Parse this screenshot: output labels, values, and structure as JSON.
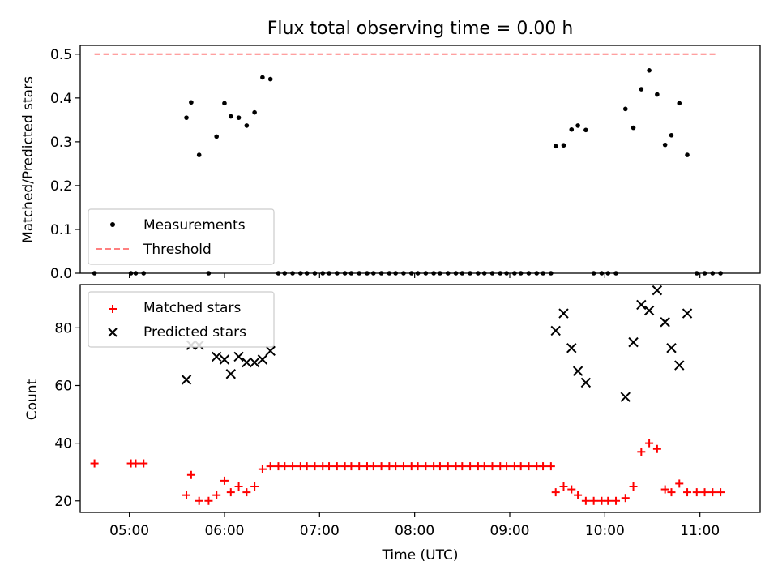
{
  "chart_data": [
    {
      "type": "scatter",
      "title": "Flux total observing time = 0.00 h",
      "xlabel": "",
      "ylabel": "Matched/Predicted stars",
      "ylim": [
        0,
        0.52
      ],
      "xlim": [
        "04:29",
        "11:38"
      ],
      "yticks": [
        "0.0",
        "0.1",
        "0.2",
        "0.3",
        "0.4",
        "0.5"
      ],
      "legend": {
        "position": "lower-left",
        "entries": [
          "Measurements",
          "Threshold"
        ]
      },
      "colors": {
        "measurements": "#000000",
        "threshold": "#ff8080"
      },
      "threshold": {
        "name": "Threshold",
        "value": 0.5,
        "x_range": [
          "04:38",
          "11:10"
        ]
      },
      "series": [
        {
          "name": "Measurements",
          "points": [
            [
              "04:38",
              0.0
            ],
            [
              "05:01",
              0.0
            ],
            [
              "05:04",
              0.0
            ],
            [
              "05:09",
              0.0
            ],
            [
              "05:36",
              0.355
            ],
            [
              "05:39",
              0.39
            ],
            [
              "05:44",
              0.27
            ],
            [
              "05:50",
              0.0
            ],
            [
              "05:55",
              0.312
            ],
            [
              "06:00",
              0.388
            ],
            [
              "06:04",
              0.358
            ],
            [
              "06:09",
              0.355
            ],
            [
              "06:14",
              0.337
            ],
            [
              "06:19",
              0.367
            ],
            [
              "06:24",
              0.447
            ],
            [
              "06:29",
              0.443
            ],
            [
              "06:34",
              0.0
            ],
            [
              "06:38",
              0.0
            ],
            [
              "06:43",
              0.0
            ],
            [
              "06:48",
              0.0
            ],
            [
              "06:52",
              0.0
            ],
            [
              "06:57",
              0.0
            ],
            [
              "07:02",
              0.0
            ],
            [
              "07:06",
              0.0
            ],
            [
              "07:11",
              0.0
            ],
            [
              "07:16",
              0.0
            ],
            [
              "07:20",
              0.0
            ],
            [
              "07:25",
              0.0
            ],
            [
              "07:30",
              0.0
            ],
            [
              "07:34",
              0.0
            ],
            [
              "07:39",
              0.0
            ],
            [
              "07:44",
              0.0
            ],
            [
              "07:48",
              0.0
            ],
            [
              "07:53",
              0.0
            ],
            [
              "07:58",
              0.0
            ],
            [
              "08:02",
              0.0
            ],
            [
              "08:07",
              0.0
            ],
            [
              "08:12",
              0.0
            ],
            [
              "08:16",
              0.0
            ],
            [
              "08:21",
              0.0
            ],
            [
              "08:26",
              0.0
            ],
            [
              "08:30",
              0.0
            ],
            [
              "08:35",
              0.0
            ],
            [
              "08:40",
              0.0
            ],
            [
              "08:44",
              0.0
            ],
            [
              "08:49",
              0.0
            ],
            [
              "08:54",
              0.0
            ],
            [
              "08:58",
              0.0
            ],
            [
              "09:03",
              0.0
            ],
            [
              "09:07",
              0.0
            ],
            [
              "09:12",
              0.0
            ],
            [
              "09:17",
              0.0
            ],
            [
              "09:21",
              0.0
            ],
            [
              "09:26",
              0.0
            ],
            [
              "09:29",
              0.29
            ],
            [
              "09:34",
              0.292
            ],
            [
              "09:39",
              0.328
            ],
            [
              "09:43",
              0.337
            ],
            [
              "09:48",
              0.327
            ],
            [
              "09:53",
              0.0
            ],
            [
              "09:58",
              0.0
            ],
            [
              "10:02",
              0.0
            ],
            [
              "10:07",
              0.0
            ],
            [
              "10:13",
              0.375
            ],
            [
              "10:18",
              0.332
            ],
            [
              "10:23",
              0.42
            ],
            [
              "10:28",
              0.463
            ],
            [
              "10:33",
              0.408
            ],
            [
              "10:38",
              0.293
            ],
            [
              "10:42",
              0.315
            ],
            [
              "10:47",
              0.388
            ],
            [
              "10:52",
              0.27
            ],
            [
              "10:58",
              0.0
            ],
            [
              "11:03",
              0.0
            ],
            [
              "11:08",
              0.0
            ],
            [
              "11:13",
              0.0
            ]
          ]
        }
      ]
    },
    {
      "type": "scatter",
      "title": "",
      "xlabel": "Time (UTC)",
      "ylabel": "Count",
      "ylim": [
        16,
        95
      ],
      "xlim": [
        "04:29",
        "11:38"
      ],
      "yticks": [
        "20",
        "40",
        "60",
        "80"
      ],
      "xticks": [
        "05:00",
        "06:00",
        "07:00",
        "08:00",
        "09:00",
        "10:00",
        "11:00"
      ],
      "legend": {
        "position": "top-left",
        "entries": [
          "Matched stars",
          "Predicted stars"
        ]
      },
      "colors": {
        "matched": "#ff0000",
        "predicted": "#000000"
      },
      "series": [
        {
          "name": "Matched stars",
          "points": [
            [
              "04:38",
              33
            ],
            [
              "05:01",
              33
            ],
            [
              "05:04",
              33
            ],
            [
              "05:09",
              33
            ],
            [
              "05:36",
              22
            ],
            [
              "05:39",
              29
            ],
            [
              "05:44",
              20
            ],
            [
              "05:50",
              20
            ],
            [
              "05:55",
              22
            ],
            [
              "06:00",
              27
            ],
            [
              "06:04",
              23
            ],
            [
              "06:09",
              25
            ],
            [
              "06:14",
              23
            ],
            [
              "06:19",
              25
            ],
            [
              "06:24",
              31
            ],
            [
              "06:29",
              32
            ],
            [
              "06:34",
              32
            ],
            [
              "06:38",
              32
            ],
            [
              "06:43",
              32
            ],
            [
              "06:48",
              32
            ],
            [
              "06:52",
              32
            ],
            [
              "06:57",
              32
            ],
            [
              "07:02",
              32
            ],
            [
              "07:06",
              32
            ],
            [
              "07:11",
              32
            ],
            [
              "07:16",
              32
            ],
            [
              "07:20",
              32
            ],
            [
              "07:25",
              32
            ],
            [
              "07:30",
              32
            ],
            [
              "07:34",
              32
            ],
            [
              "07:39",
              32
            ],
            [
              "07:44",
              32
            ],
            [
              "07:48",
              32
            ],
            [
              "07:53",
              32
            ],
            [
              "07:58",
              32
            ],
            [
              "08:02",
              32
            ],
            [
              "08:07",
              32
            ],
            [
              "08:12",
              32
            ],
            [
              "08:16",
              32
            ],
            [
              "08:21",
              32
            ],
            [
              "08:26",
              32
            ],
            [
              "08:30",
              32
            ],
            [
              "08:35",
              32
            ],
            [
              "08:40",
              32
            ],
            [
              "08:44",
              32
            ],
            [
              "08:49",
              32
            ],
            [
              "08:54",
              32
            ],
            [
              "08:58",
              32
            ],
            [
              "09:03",
              32
            ],
            [
              "09:07",
              32
            ],
            [
              "09:12",
              32
            ],
            [
              "09:17",
              32
            ],
            [
              "09:21",
              32
            ],
            [
              "09:26",
              32
            ],
            [
              "09:29",
              23
            ],
            [
              "09:34",
              25
            ],
            [
              "09:39",
              24
            ],
            [
              "09:43",
              22
            ],
            [
              "09:48",
              20
            ],
            [
              "09:53",
              20
            ],
            [
              "09:58",
              20
            ],
            [
              "10:02",
              20
            ],
            [
              "10:07",
              20
            ],
            [
              "10:13",
              21
            ],
            [
              "10:18",
              25
            ],
            [
              "10:23",
              37
            ],
            [
              "10:28",
              40
            ],
            [
              "10:33",
              38
            ],
            [
              "10:38",
              24
            ],
            [
              "10:42",
              23
            ],
            [
              "10:47",
              26
            ],
            [
              "10:52",
              23
            ],
            [
              "10:58",
              23
            ],
            [
              "11:03",
              23
            ],
            [
              "11:08",
              23
            ],
            [
              "11:13",
              23
            ]
          ]
        },
        {
          "name": "Predicted stars",
          "points": [
            [
              "05:36",
              62
            ],
            [
              "05:39",
              74
            ],
            [
              "05:44",
              74
            ],
            [
              "05:55",
              70
            ],
            [
              "06:00",
              69
            ],
            [
              "06:04",
              64
            ],
            [
              "06:09",
              70
            ],
            [
              "06:14",
              68
            ],
            [
              "06:19",
              68
            ],
            [
              "06:24",
              69
            ],
            [
              "06:29",
              72
            ],
            [
              "09:29",
              79
            ],
            [
              "09:34",
              85
            ],
            [
              "09:39",
              73
            ],
            [
              "09:43",
              65
            ],
            [
              "09:48",
              61
            ],
            [
              "10:13",
              56
            ],
            [
              "10:18",
              75
            ],
            [
              "10:23",
              88
            ],
            [
              "10:28",
              86
            ],
            [
              "10:33",
              93
            ],
            [
              "10:38",
              82
            ],
            [
              "10:42",
              73
            ],
            [
              "10:47",
              67
            ],
            [
              "10:52",
              85
            ]
          ]
        }
      ]
    }
  ]
}
